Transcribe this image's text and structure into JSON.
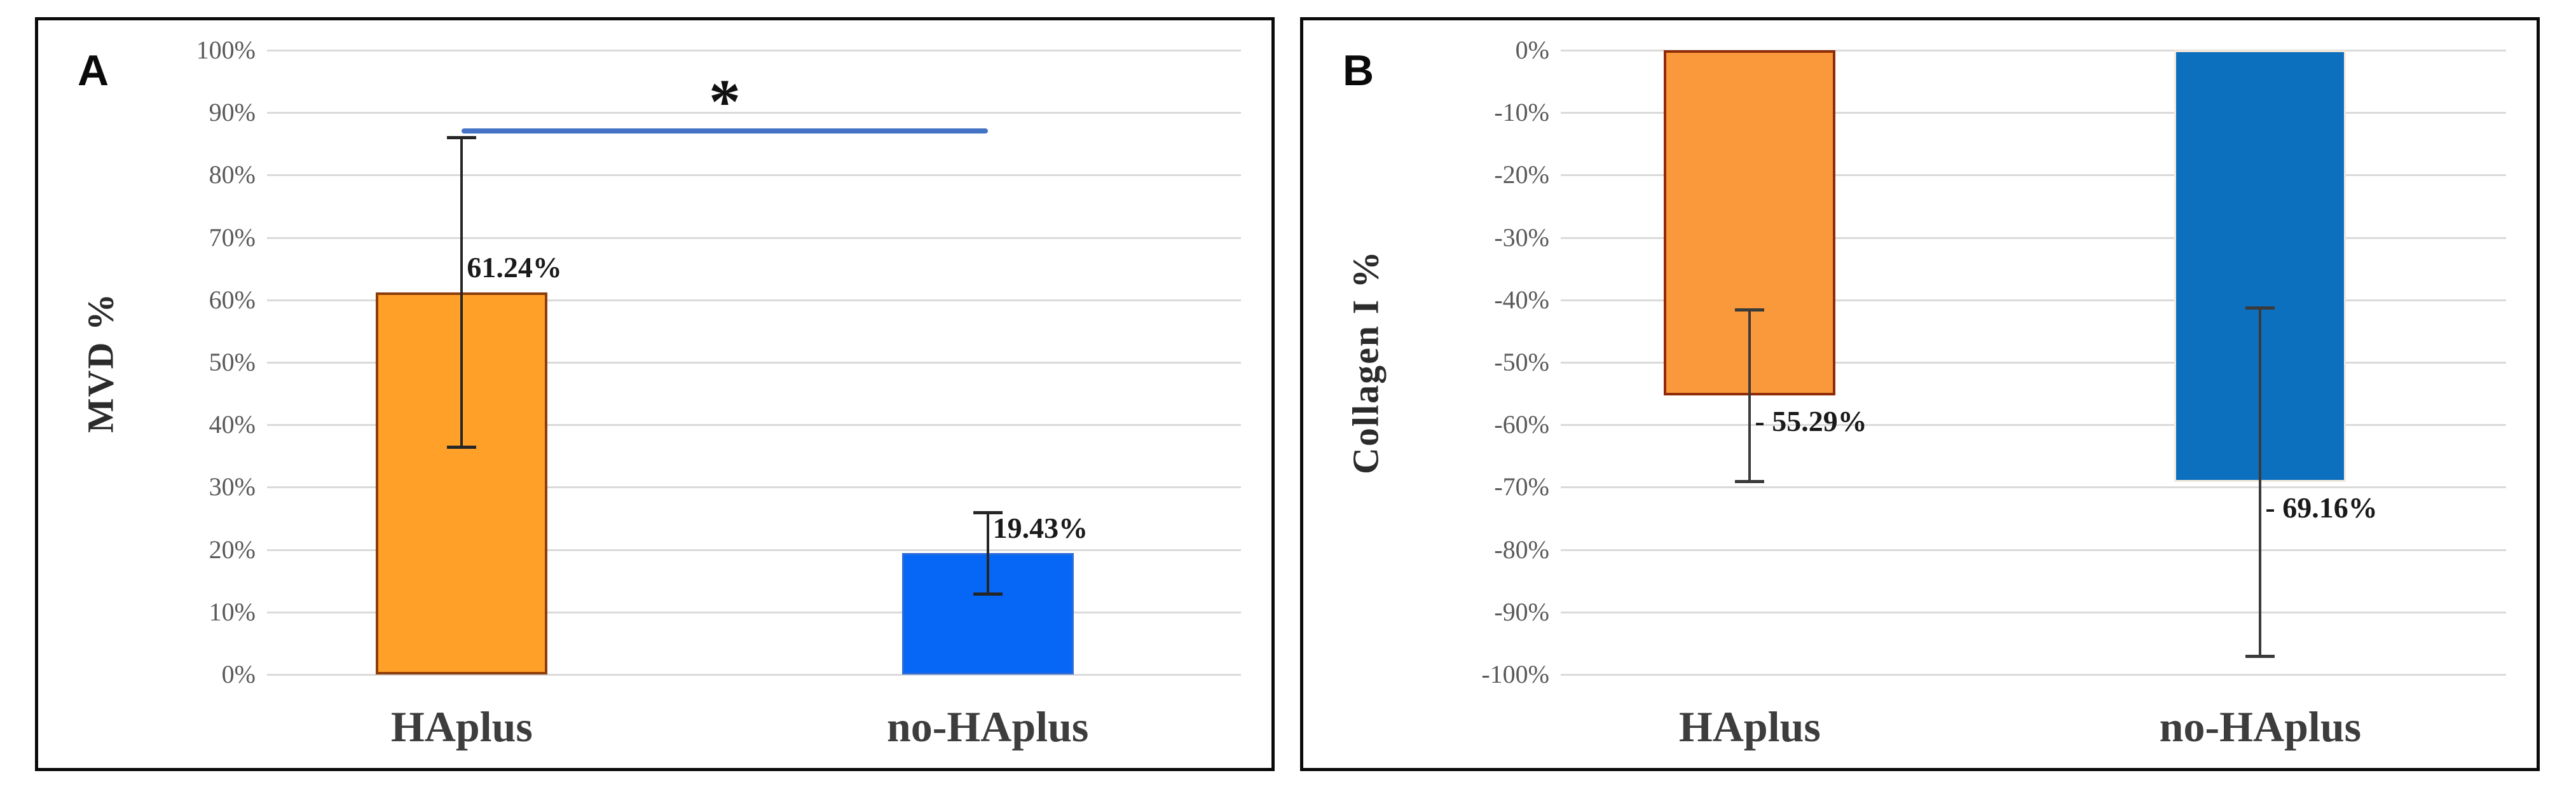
{
  "figure": {
    "background_color": "#ffffff",
    "panel_border_color": "#0a0a0a",
    "gridline_color": "#dadada",
    "tick_color": "#595959"
  },
  "chart_data": [
    {
      "type": "bar",
      "panel_label": "A",
      "title": "",
      "xlabel": "",
      "ylabel": "MVD %",
      "ylim": [
        0,
        100
      ],
      "grid": true,
      "legend": "none",
      "ytick_labels": [
        "100%",
        "90%",
        "80%",
        "70%",
        "60%",
        "50%",
        "40%",
        "30%",
        "20%",
        "10%",
        "0%"
      ],
      "categories": [
        "HAplus",
        "no-HAplus"
      ],
      "values": [
        61.24,
        19.43
      ],
      "data_labels": [
        "61.24%",
        "19.43%"
      ],
      "bar_fills": [
        "#FFA128",
        "#0666F5"
      ],
      "bar_borders": [
        "#8C3D0B",
        "#2B6BD8"
      ],
      "bar_border_widths": [
        4,
        3
      ],
      "error_bars": [
        [
          36.4,
          86.0
        ],
        [
          12.8,
          26.0
        ]
      ],
      "error_color": "#262626",
      "significance": {
        "symbol": "*",
        "between": [
          "HAplus",
          "no-HAplus"
        ],
        "line_level": 87.5,
        "line_color": "#4472C4"
      }
    },
    {
      "type": "bar",
      "panel_label": "B",
      "title": "",
      "xlabel": "",
      "ylabel": "Collagen I %",
      "ylim": [
        -100,
        0
      ],
      "grid": true,
      "legend": "none",
      "ytick_labels": [
        "0%",
        "-10%",
        "-20%",
        "-30%",
        "-40%",
        "-50%",
        "-60%",
        "-70%",
        "-80%",
        "-90%",
        "-100%"
      ],
      "categories": [
        "HAplus",
        "no-HAplus"
      ],
      "values": [
        -55.29,
        -69.16
      ],
      "data_labels": [
        "- 55.29%",
        "- 69.16%"
      ],
      "bar_fills": [
        "#F9993B",
        "#0C70BE"
      ],
      "bar_borders": [
        "#8F2B06",
        "#F5E9D9"
      ],
      "bar_border_widths": [
        4,
        3
      ],
      "error_bars": [
        [
          -69.1,
          -41.5
        ],
        [
          -97.1,
          -41.2
        ]
      ],
      "error_color": "#3a3a3a",
      "significance": null
    }
  ]
}
